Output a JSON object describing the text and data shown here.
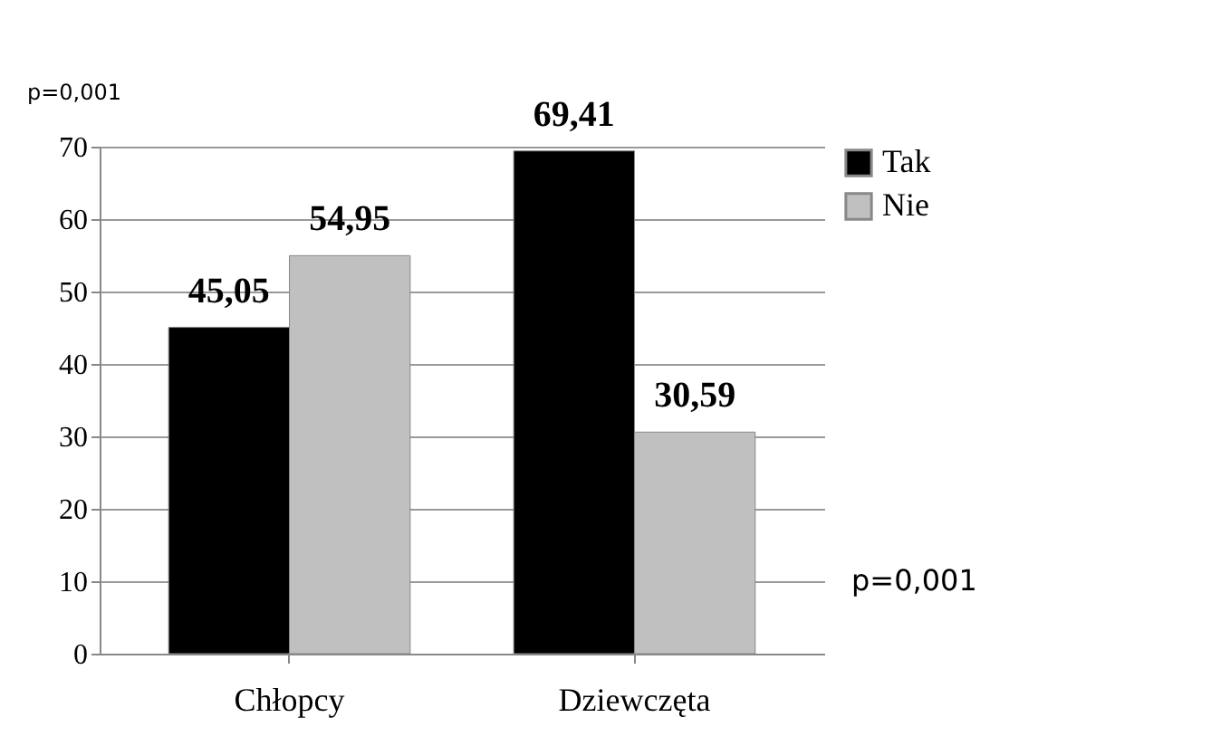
{
  "chart_data": {
    "type": "bar",
    "categories": [
      "Chłopcy",
      "Dziewczęta"
    ],
    "series": [
      {
        "name": "Tak",
        "color": "#000000",
        "values": [
          45.05,
          69.41
        ],
        "value_labels": [
          "45,05",
          "69,41"
        ]
      },
      {
        "name": "Nie",
        "color": "#c0c0c0",
        "values": [
          54.95,
          30.59
        ],
        "value_labels": [
          "54,95",
          "30,59"
        ]
      }
    ],
    "ylim": [
      0,
      70
    ],
    "yticks": [
      0,
      10,
      20,
      30,
      40,
      50,
      60,
      70
    ],
    "grid": "y",
    "legend": "right",
    "annotations": [
      "p=0,001",
      "p=0,001"
    ]
  }
}
